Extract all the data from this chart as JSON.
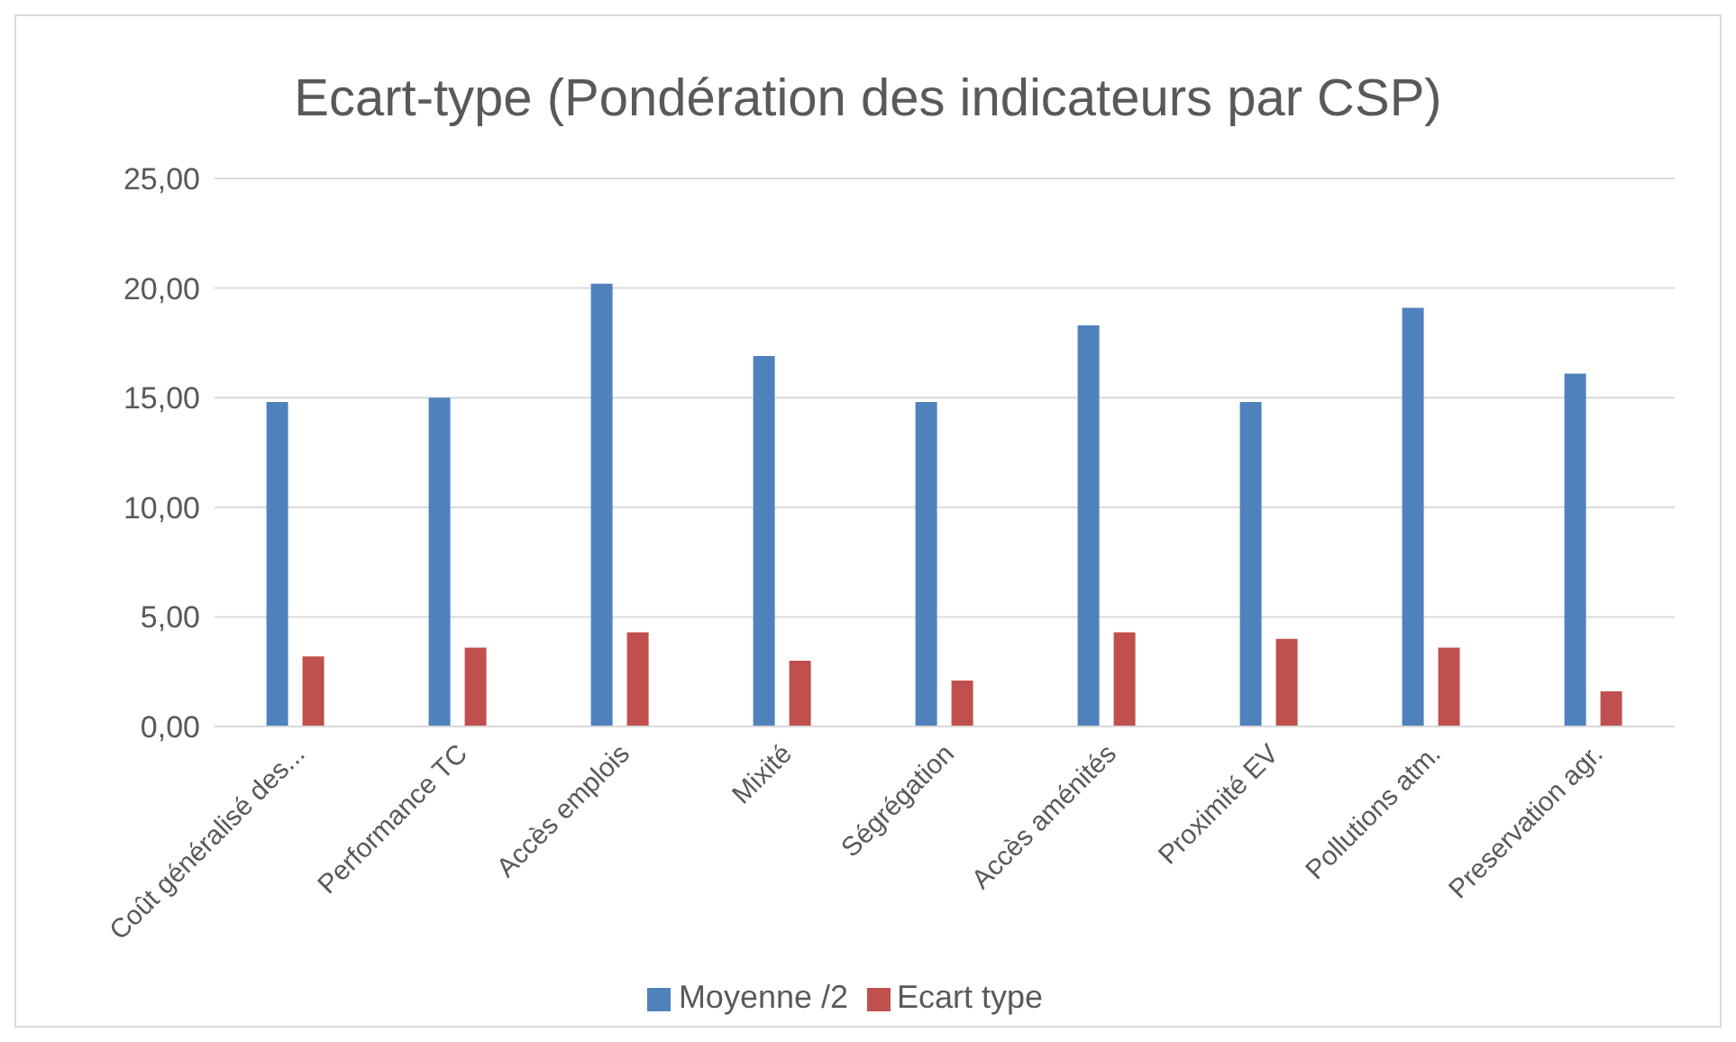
{
  "chart_data": {
    "type": "bar",
    "title": "Ecart-type (Pondération des indicateurs par CSP)",
    "categories": [
      "Coût généralisé des...",
      "Performance TC",
      "Accès emplois",
      "Mixité",
      "Ségrégation",
      "Accès aménités",
      "Proximité EV",
      "Pollutions atm.",
      "Preservation agr."
    ],
    "series": [
      {
        "name": "Moyenne /2",
        "color": "#4f81bd",
        "values": [
          14.8,
          15.0,
          20.2,
          16.9,
          14.8,
          18.3,
          14.8,
          19.1,
          16.1
        ]
      },
      {
        "name": "Ecart type",
        "color": "#c0504d",
        "values": [
          3.2,
          3.6,
          4.3,
          3.0,
          2.1,
          4.3,
          4.0,
          3.6,
          1.6
        ]
      }
    ],
    "ylim": [
      0,
      25
    ],
    "yticks": [
      {
        "value": 0,
        "label": "0,00"
      },
      {
        "value": 5,
        "label": "5,00"
      },
      {
        "value": 10,
        "label": "10,00"
      },
      {
        "value": 15,
        "label": "15,00"
      },
      {
        "value": 20,
        "label": "20,00"
      },
      {
        "value": 25,
        "label": "25,00"
      }
    ],
    "grid": "y",
    "legend": "bottom"
  }
}
